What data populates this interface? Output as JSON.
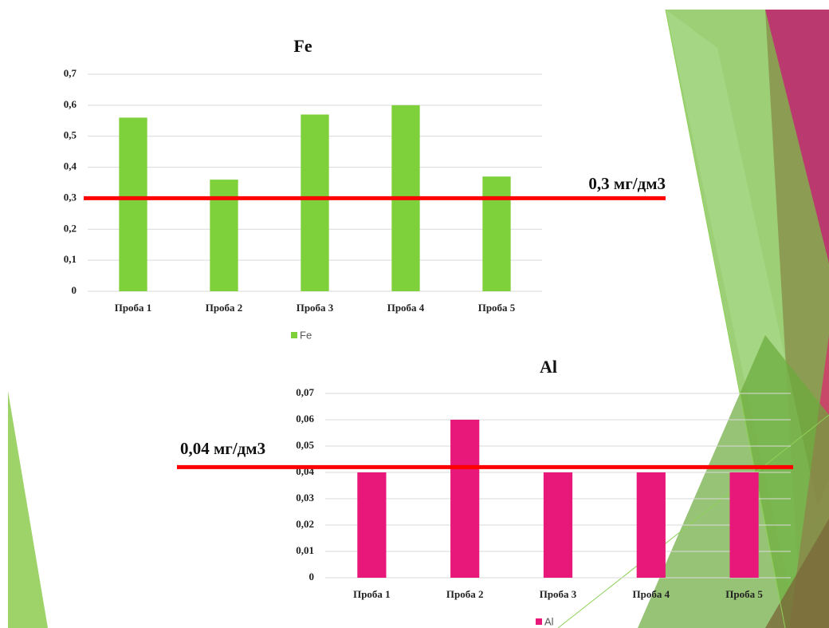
{
  "chart_data": [
    {
      "type": "bar",
      "title": "Fe",
      "categories": [
        "Проба 1",
        "Проба 2",
        "Проба 3",
        "Проба 4",
        "Проба 5"
      ],
      "series": [
        {
          "name": "Fe",
          "color": "#7ed13b",
          "values": [
            0.56,
            0.36,
            0.57,
            0.6,
            0.37
          ]
        }
      ],
      "ylim": [
        0,
        0.7
      ],
      "yticks": [
        0,
        {
          "value": 0.1,
          "label": "0,1"
        },
        {
          "value": 0.2,
          "label": "0,2"
        },
        {
          "value": 0.3,
          "label": "0,3"
        },
        {
          "value": 0.4,
          "label": "0,4"
        },
        {
          "value": 0.5,
          "label": "0,5"
        },
        {
          "value": 0.6,
          "label": "0,6"
        },
        {
          "value": 0.7,
          "label": "0,7"
        }
      ],
      "grid": true,
      "threshold": {
        "value": 0.3,
        "label": "0,3 мг/дм3",
        "color": "#ff0000"
      }
    },
    {
      "type": "bar",
      "title": "Al",
      "categories": [
        "Проба 1",
        "Проба 2",
        "Проба 3",
        "Проба 4",
        "Проба 5"
      ],
      "series": [
        {
          "name": "Al",
          "color": "#e8177a",
          "values": [
            0.04,
            0.06,
            0.04,
            0.04,
            0.04
          ]
        }
      ],
      "ylim": [
        0,
        0.07
      ],
      "yticks": [
        0,
        {
          "value": 0.01,
          "label": "0,01"
        },
        {
          "value": 0.02,
          "label": "0,02"
        },
        {
          "value": 0.03,
          "label": "0,03"
        },
        {
          "value": 0.04,
          "label": "0,04"
        },
        {
          "value": 0.05,
          "label": "0,05"
        },
        {
          "value": 0.06,
          "label": "0,06"
        },
        {
          "value": 0.07,
          "label": "0,07"
        }
      ],
      "grid": true,
      "threshold": {
        "value": 0.042,
        "label": "0,04 мг/дм3",
        "color": "#ff0000"
      }
    }
  ]
}
